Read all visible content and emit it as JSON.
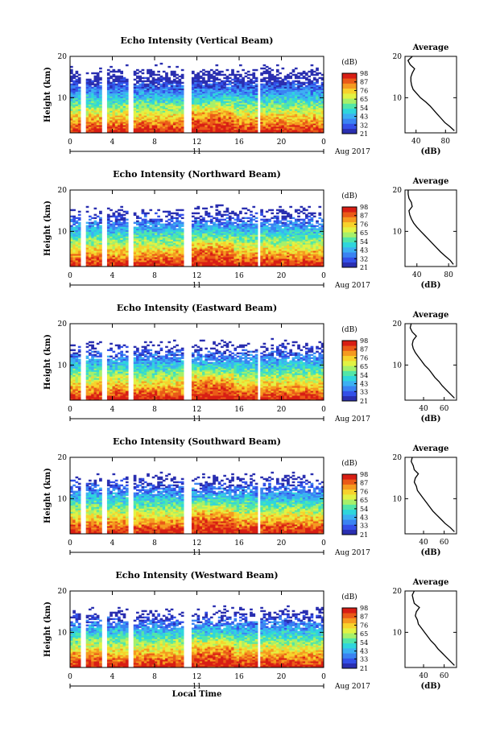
{
  "figure": {
    "xlabel": "Local Time",
    "date_day": "11",
    "date_label": "Aug 2017",
    "ylabel": "Height (km)",
    "colorbar_unit": "(dB)",
    "profile_title": "Average",
    "profile_xlabel": "(dB)"
  },
  "colors": {
    "colormap": [
      "#2a2fb0",
      "#3350e8",
      "#3a83f2",
      "#3cb0f2",
      "#2fd6dc",
      "#52e6a8",
      "#a6f06a",
      "#e2f244",
      "#f7d22c",
      "#f59a20",
      "#ea5a18",
      "#d81e14"
    ],
    "mask": "#ffffff"
  },
  "chart_data": [
    {
      "type": "heatmap",
      "title": "Echo Intensity (Vertical Beam)",
      "xlabel": "Local Time",
      "ylabel": "Height (km)",
      "xlim": [
        0,
        24
      ],
      "ylim": [
        1.5,
        20
      ],
      "xticks": [
        "0",
        "4",
        "8",
        "12",
        "16",
        "20",
        "0"
      ],
      "yticks": [
        "10",
        "20"
      ],
      "colorbar": {
        "unit": "(dB)",
        "ticks": [
          "21",
          "32",
          "43",
          "54",
          "65",
          "76",
          "87",
          "98"
        ],
        "range": [
          21,
          98
        ]
      },
      "data_gaps_hours": [
        [
          1.1,
          1.5
        ],
        [
          3.0,
          3.4
        ],
        [
          5.6,
          6.1
        ],
        [
          10.8,
          11.4
        ],
        [
          17.7,
          18.0
        ]
      ],
      "profile": {
        "title": "Average",
        "xlabel": "(dB)",
        "xticks": [
          "40",
          "80"
        ],
        "xlim": [
          25,
          95
        ],
        "yticks": [
          "10",
          "20"
        ],
        "ylim": [
          1.5,
          20
        ],
        "height_km": [
          2,
          3,
          4,
          5,
          6,
          7,
          8,
          9,
          10,
          11,
          12,
          13,
          14,
          15,
          16,
          17,
          18,
          19,
          20
        ],
        "db": [
          92,
          86,
          79,
          74,
          69,
          64,
          59,
          53,
          46,
          41,
          36,
          34,
          33,
          33,
          35,
          38,
          32,
          29,
          35
        ]
      }
    },
    {
      "type": "heatmap",
      "title": "Echo Intensity (Northward Beam)",
      "xlabel": "Local Time",
      "ylabel": "Height (km)",
      "xlim": [
        0,
        24
      ],
      "ylim": [
        1.5,
        20
      ],
      "xticks": [
        "0",
        "4",
        "8",
        "12",
        "16",
        "20",
        "0"
      ],
      "yticks": [
        "10",
        "20"
      ],
      "colorbar": {
        "unit": "(dB)",
        "ticks": [
          "21",
          "32",
          "43",
          "54",
          "65",
          "76",
          "87",
          "98"
        ],
        "range": [
          21,
          98
        ]
      },
      "data_gaps_hours": [
        [
          1.1,
          1.5
        ],
        [
          3.0,
          3.4
        ],
        [
          5.6,
          6.1
        ],
        [
          10.8,
          11.4
        ],
        [
          17.7,
          18.0
        ]
      ],
      "profile": {
        "title": "Average",
        "xlabel": "(dB)",
        "xticks": [
          "40",
          "80"
        ],
        "xlim": [
          25,
          90
        ],
        "yticks": [
          "10",
          "20"
        ],
        "ylim": [
          1.5,
          20
        ],
        "height_km": [
          2,
          3,
          4,
          5,
          6,
          7,
          8,
          9,
          10,
          11,
          12,
          13,
          14,
          15,
          16,
          17,
          18,
          19,
          20
        ],
        "db": [
          86,
          82,
          76,
          70,
          65,
          60,
          55,
          50,
          45,
          40,
          36,
          33,
          31,
          30,
          34,
          33,
          30,
          29,
          29
        ]
      }
    },
    {
      "type": "heatmap",
      "title": "Echo Intensity (Eastward Beam)",
      "xlabel": "Local Time",
      "ylabel": "Height (km)",
      "xlim": [
        0,
        24
      ],
      "ylim": [
        1.5,
        20
      ],
      "xticks": [
        "0",
        "4",
        "8",
        "12",
        "16",
        "20",
        "0"
      ],
      "yticks": [
        "10",
        "20"
      ],
      "colorbar": {
        "unit": "(dB)",
        "ticks": [
          "21",
          "33",
          "43",
          "54",
          "65",
          "76",
          "87",
          "98"
        ],
        "range": [
          21,
          98
        ]
      },
      "data_gaps_hours": [
        [
          1.1,
          1.5
        ],
        [
          3.0,
          3.4
        ],
        [
          5.6,
          6.1
        ],
        [
          10.8,
          11.4
        ],
        [
          17.7,
          18.0
        ]
      ],
      "profile": {
        "title": "Average",
        "xlabel": "(dB)",
        "xticks": [
          "40",
          "60"
        ],
        "xlim": [
          22,
          72
        ],
        "yticks": [
          "10",
          "20"
        ],
        "ylim": [
          1.5,
          20
        ],
        "height_km": [
          2,
          3,
          4,
          5,
          6,
          7,
          8,
          9,
          10,
          11,
          12,
          13,
          14,
          15,
          16,
          17,
          18,
          19,
          20
        ],
        "db": [
          70,
          66,
          62,
          58,
          55,
          51,
          48,
          45,
          41,
          38,
          35,
          32,
          30,
          29,
          30,
          33,
          29,
          27,
          28
        ]
      }
    },
    {
      "type": "heatmap",
      "title": "Echo Intensity (Southward Beam)",
      "xlabel": "Local Time",
      "ylabel": "Height (km)",
      "xlim": [
        0,
        24
      ],
      "ylim": [
        1.5,
        20
      ],
      "xticks": [
        "0",
        "4",
        "8",
        "12",
        "16",
        "20",
        "0"
      ],
      "yticks": [
        "10",
        "20"
      ],
      "colorbar": {
        "unit": "(dB)",
        "ticks": [
          "21",
          "33",
          "43",
          "54",
          "65",
          "76",
          "87",
          "98"
        ],
        "range": [
          21,
          98
        ]
      },
      "data_gaps_hours": [
        [
          1.1,
          1.5
        ],
        [
          3.0,
          3.4
        ],
        [
          5.6,
          6.1
        ],
        [
          10.8,
          11.4
        ],
        [
          17.7,
          18.0
        ]
      ],
      "profile": {
        "title": "Average",
        "xlabel": "(dB)",
        "xticks": [
          "40",
          "60"
        ],
        "xlim": [
          22,
          72
        ],
        "yticks": [
          "10",
          "20"
        ],
        "ylim": [
          1.5,
          20
        ],
        "height_km": [
          2,
          3,
          4,
          5,
          6,
          7,
          8,
          9,
          10,
          11,
          12,
          13,
          14,
          15,
          16,
          17,
          18,
          19,
          20
        ],
        "db": [
          70,
          66,
          61,
          57,
          53,
          49,
          46,
          43,
          40,
          37,
          34,
          33,
          31,
          32,
          35,
          31,
          30,
          28,
          29
        ]
      }
    },
    {
      "type": "heatmap",
      "title": "Echo Intensity (Westward Beam)",
      "xlabel": "Local Time",
      "ylabel": "Height (km)",
      "xlim": [
        0,
        24
      ],
      "ylim": [
        1.5,
        20
      ],
      "xticks": [
        "0",
        "4",
        "8",
        "12",
        "16",
        "20",
        "0"
      ],
      "yticks": [
        "10",
        "20"
      ],
      "colorbar": {
        "unit": "(dB)",
        "ticks": [
          "21",
          "33",
          "43",
          "54",
          "65",
          "76",
          "87",
          "98"
        ],
        "range": [
          21,
          98
        ]
      },
      "data_gaps_hours": [
        [
          1.1,
          1.5
        ],
        [
          3.0,
          3.4
        ],
        [
          5.6,
          6.1
        ],
        [
          10.8,
          11.4
        ],
        [
          17.7,
          18.0
        ]
      ],
      "profile": {
        "title": "Average",
        "xlabel": "(dB)",
        "xticks": [
          "40",
          "60"
        ],
        "xlim": [
          22,
          72
        ],
        "yticks": [
          "10",
          "20"
        ],
        "ylim": [
          1.5,
          20
        ],
        "height_km": [
          2,
          3,
          4,
          5,
          6,
          7,
          8,
          9,
          10,
          11,
          12,
          13,
          14,
          15,
          16,
          17,
          18,
          19,
          20
        ],
        "db": [
          70,
          66,
          62,
          58,
          54,
          51,
          47,
          44,
          41,
          38,
          35,
          34,
          32,
          33,
          36,
          31,
          30,
          29,
          31
        ]
      }
    }
  ]
}
